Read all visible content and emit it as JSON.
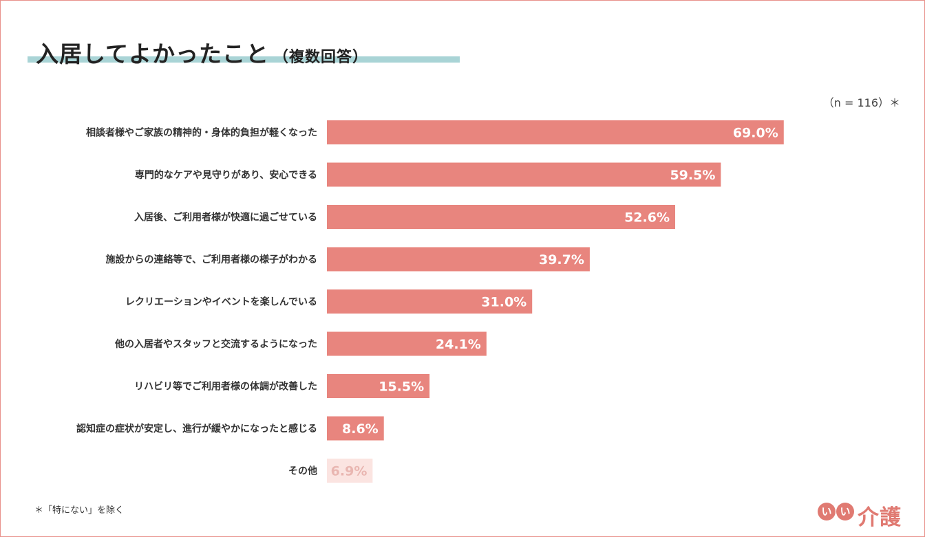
{
  "header": {
    "title": "入居してよかったこと",
    "subtitle": "（複数回答）",
    "sample_note": "（n = 116）＊"
  },
  "chart_data": {
    "type": "bar",
    "orientation": "horizontal",
    "categories": [
      "相談者様やご家族の精神的・身体的負担が軽くなった",
      "専門的なケアや見守りがあり、安心できる",
      "入居後、ご利用者様が快適に過ごせている",
      "施設からの連絡等で、ご利用者様の様子がわかる",
      "レクリエーションやイベントを楽しんでいる",
      "他の入居者やスタッフと交流するようになった",
      "リハビリ等でご利用者様の体調が改善した",
      "認知症の症状が安定し、進行が緩やかになったと感じる",
      "その他"
    ],
    "values": [
      69.0,
      59.5,
      52.6,
      39.7,
      31.0,
      24.1,
      15.5,
      8.6,
      6.9
    ],
    "value_labels": [
      "69.0%",
      "59.5%",
      "52.6%",
      "39.7%",
      "31.0%",
      "24.1%",
      "15.5%",
      "8.6%",
      "6.9%"
    ],
    "bar_color": "#e8857e",
    "other_bar_color": "#fbe4e1",
    "xlim": [
      0,
      100
    ],
    "grid": false
  },
  "footnote": "＊「特にない」を除く",
  "logo": {
    "chars": [
      "い",
      "い"
    ],
    "text": "介護",
    "color": "#e07a72"
  }
}
